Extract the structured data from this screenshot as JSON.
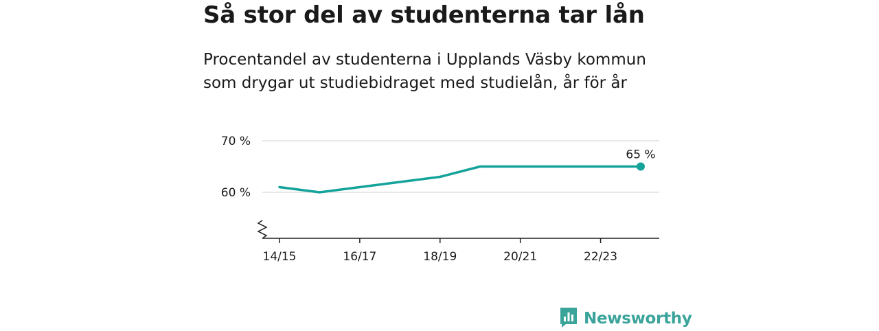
{
  "header": {
    "title": "Så stor del av studenterna tar lån",
    "subtitle": "Procentandel av studenterna i Upplands Väsby kommun som drygar ut studiebidraget med studielån, år för år"
  },
  "chart_data": {
    "type": "line",
    "x": [
      "14/15",
      "15/16",
      "16/17",
      "17/18",
      "18/19",
      "19/20",
      "20/21",
      "21/22",
      "22/23",
      "23/24"
    ],
    "series": [
      {
        "values": [
          61,
          60,
          61,
          62,
          63,
          65,
          65,
          65,
          65,
          65
        ]
      }
    ],
    "x_tick_labels": [
      "14/15",
      "16/17",
      "18/19",
      "20/21",
      "22/23"
    ],
    "y_ticks": [
      60,
      70
    ],
    "y_tick_labels": [
      "60 %",
      "70 %"
    ],
    "ylim": [
      51,
      70
    ],
    "axis_break": true,
    "grid": true,
    "end_label": "65 %",
    "line_color": "#14a39a"
  },
  "brand": {
    "name": "Newsworthy",
    "color": "#3aa39a"
  }
}
